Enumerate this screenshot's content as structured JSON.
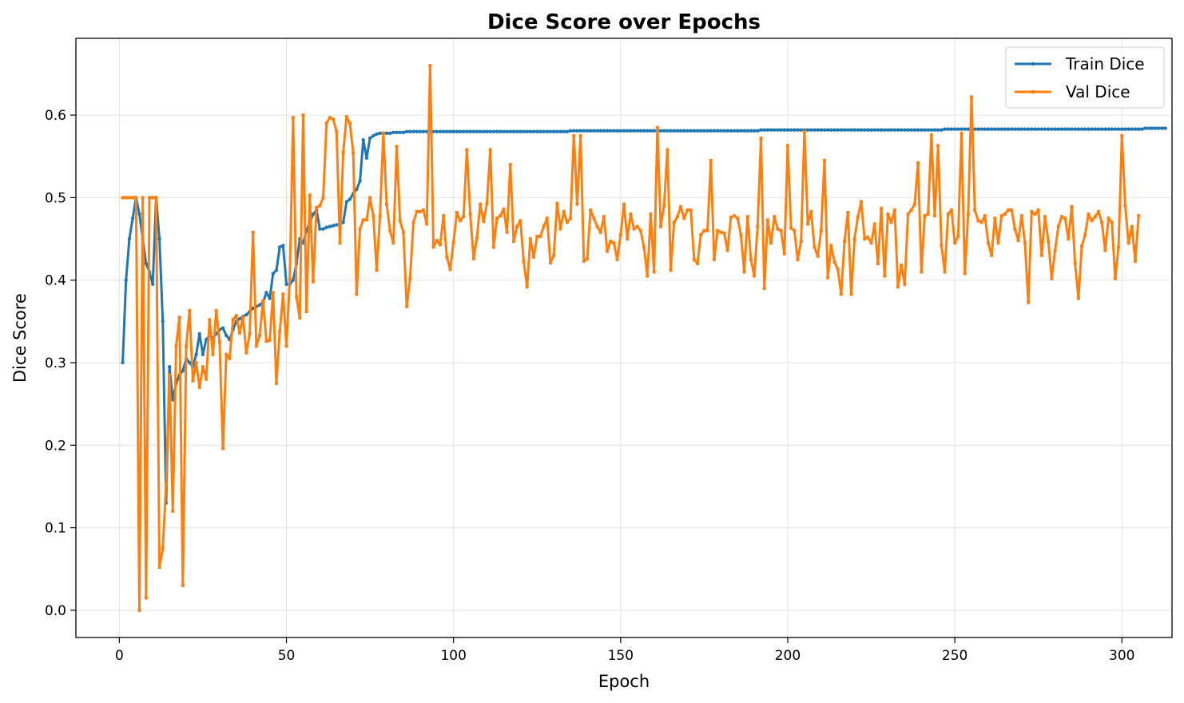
{
  "chart_data": {
    "type": "line",
    "title": "Dice Score over Epochs",
    "xlabel": "Epoch",
    "ylabel": "Dice Score",
    "xlim": [
      -13,
      315
    ],
    "ylim": [
      -0.033,
      0.693
    ],
    "xticks": [
      0,
      50,
      100,
      150,
      200,
      250,
      300
    ],
    "yticks": [
      0.0,
      0.1,
      0.2,
      0.3,
      0.4,
      0.5,
      0.6
    ],
    "grid": true,
    "legend_position": "top-right",
    "colors": {
      "train": "#1f77b4",
      "val": "#ff7f0e"
    },
    "series": [
      {
        "name": "Train Dice",
        "color": "#1f77b4",
        "marker": "circle",
        "x_start": 1,
        "values": [
          0.3,
          0.4,
          0.45,
          0.475,
          0.5,
          0.48,
          0.45,
          0.42,
          0.41,
          0.395,
          0.5,
          0.45,
          0.35,
          0.13,
          0.295,
          0.255,
          0.275,
          0.285,
          0.29,
          0.305,
          0.3,
          0.295,
          0.31,
          0.335,
          0.31,
          0.328,
          0.333,
          0.33,
          0.335,
          0.34,
          0.342,
          0.333,
          0.328,
          0.34,
          0.35,
          0.353,
          0.356,
          0.358,
          0.362,
          0.366,
          0.368,
          0.37,
          0.373,
          0.385,
          0.378,
          0.408,
          0.412,
          0.44,
          0.442,
          0.395,
          0.395,
          0.4,
          0.42,
          0.45,
          0.445,
          0.46,
          0.47,
          0.48,
          0.485,
          0.462,
          0.462,
          0.464,
          0.465,
          0.466,
          0.467,
          0.468,
          0.47,
          0.495,
          0.498,
          0.505,
          0.51,
          0.52,
          0.57,
          0.548,
          0.572,
          0.575,
          0.577,
          0.578,
          0.578,
          0.578,
          0.578,
          0.579,
          0.579,
          0.579,
          0.579,
          0.58,
          0.58,
          0.58,
          0.58,
          0.58,
          0.58,
          0.58,
          0.58,
          0.58,
          0.58,
          0.58,
          0.58,
          0.58,
          0.58,
          0.58,
          0.58,
          0.58,
          0.58,
          0.58,
          0.58,
          0.58,
          0.58,
          0.58,
          0.58,
          0.58,
          0.58,
          0.58,
          0.58,
          0.58,
          0.58,
          0.58,
          0.58,
          0.58,
          0.58,
          0.58,
          0.58,
          0.58,
          0.58,
          0.58,
          0.58,
          0.58,
          0.58,
          0.58,
          0.58,
          0.58,
          0.58,
          0.58,
          0.58,
          0.58,
          0.581,
          0.581,
          0.581,
          0.581,
          0.581,
          0.581,
          0.581,
          0.581,
          0.581,
          0.581,
          0.581,
          0.581,
          0.581,
          0.581,
          0.581,
          0.581,
          0.581,
          0.581,
          0.581,
          0.581,
          0.581,
          0.581,
          0.581,
          0.581,
          0.581,
          0.581,
          0.581,
          0.581,
          0.581,
          0.581,
          0.581,
          0.581,
          0.581,
          0.581,
          0.581,
          0.581,
          0.581,
          0.581,
          0.581,
          0.581,
          0.581,
          0.581,
          0.581,
          0.581,
          0.581,
          0.581,
          0.581,
          0.581,
          0.581,
          0.581,
          0.581,
          0.581,
          0.581,
          0.581,
          0.581,
          0.581,
          0.581,
          0.582,
          0.582,
          0.582,
          0.582,
          0.582,
          0.582,
          0.582,
          0.582,
          0.582,
          0.582,
          0.582,
          0.582,
          0.582,
          0.582,
          0.582,
          0.582,
          0.582,
          0.582,
          0.582,
          0.582,
          0.582,
          0.582,
          0.582,
          0.582,
          0.582,
          0.582,
          0.582,
          0.582,
          0.582,
          0.582,
          0.582,
          0.582,
          0.582,
          0.582,
          0.582,
          0.582,
          0.582,
          0.582,
          0.582,
          0.582,
          0.582,
          0.582,
          0.582,
          0.582,
          0.582,
          0.582,
          0.582,
          0.582,
          0.582,
          0.582,
          0.582,
          0.582,
          0.582,
          0.582,
          0.582,
          0.583,
          0.583,
          0.583,
          0.583,
          0.583,
          0.583,
          0.583,
          0.583,
          0.583,
          0.583,
          0.583,
          0.583,
          0.583,
          0.583,
          0.583,
          0.583,
          0.583,
          0.583,
          0.583,
          0.583,
          0.583,
          0.583,
          0.583,
          0.583,
          0.583,
          0.583,
          0.583,
          0.583,
          0.583,
          0.583,
          0.583,
          0.583,
          0.583,
          0.583,
          0.583,
          0.583,
          0.583,
          0.583,
          0.583,
          0.583,
          0.583,
          0.583,
          0.583,
          0.583,
          0.583,
          0.583,
          0.583,
          0.583,
          0.583,
          0.583,
          0.583,
          0.583,
          0.583,
          0.583,
          0.583,
          0.583,
          0.583,
          0.583,
          0.583,
          0.583,
          0.584,
          0.584,
          0.584,
          0.584,
          0.584,
          0.584,
          0.584
        ]
      },
      {
        "name": "Val Dice",
        "color": "#ff7f0e",
        "marker": "square",
        "x_start": 1,
        "values": [
          0.5,
          0.5,
          0.5,
          0.5,
          0.5,
          0.0,
          0.5,
          0.015,
          0.5,
          0.5,
          0.5,
          0.052,
          0.075,
          0.153,
          0.285,
          0.12,
          0.32,
          0.355,
          0.03,
          0.32,
          0.363,
          0.278,
          0.3,
          0.27,
          0.295,
          0.28,
          0.352,
          0.31,
          0.363,
          0.325,
          0.196,
          0.31,
          0.305,
          0.352,
          0.357,
          0.336,
          0.355,
          0.312,
          0.335,
          0.458,
          0.32,
          0.333,
          0.375,
          0.326,
          0.327,
          0.385,
          0.275,
          0.338,
          0.383,
          0.32,
          0.402,
          0.597,
          0.38,
          0.354,
          0.6,
          0.362,
          0.503,
          0.398,
          0.488,
          0.49,
          0.5,
          0.59,
          0.597,
          0.595,
          0.58,
          0.445,
          0.555,
          0.598,
          0.59,
          0.554,
          0.383,
          0.462,
          0.473,
          0.473,
          0.5,
          0.478,
          0.412,
          0.478,
          0.578,
          0.492,
          0.46,
          0.445,
          0.562,
          0.472,
          0.458,
          0.368,
          0.402,
          0.47,
          0.483,
          0.483,
          0.485,
          0.468,
          0.66,
          0.44,
          0.448,
          0.443,
          0.478,
          0.428,
          0.413,
          0.446,
          0.482,
          0.472,
          0.477,
          0.558,
          0.48,
          0.426,
          0.451,
          0.492,
          0.471,
          0.493,
          0.558,
          0.44,
          0.475,
          0.478,
          0.486,
          0.458,
          0.54,
          0.447,
          0.465,
          0.472,
          0.423,
          0.392,
          0.45,
          0.428,
          0.453,
          0.453,
          0.465,
          0.475,
          0.421,
          0.43,
          0.493,
          0.462,
          0.483,
          0.47,
          0.475,
          0.575,
          0.492,
          0.575,
          0.423,
          0.426,
          0.485,
          0.475,
          0.465,
          0.458,
          0.477,
          0.435,
          0.447,
          0.445,
          0.425,
          0.455,
          0.492,
          0.45,
          0.48,
          0.462,
          0.465,
          0.46,
          0.44,
          0.405,
          0.48,
          0.41,
          0.585,
          0.465,
          0.49,
          0.558,
          0.412,
          0.47,
          0.477,
          0.489,
          0.475,
          0.485,
          0.485,
          0.425,
          0.42,
          0.455,
          0.46,
          0.46,
          0.545,
          0.425,
          0.46,
          0.458,
          0.457,
          0.436,
          0.476,
          0.478,
          0.475,
          0.455,
          0.41,
          0.477,
          0.425,
          0.405,
          0.465,
          0.572,
          0.39,
          0.473,
          0.445,
          0.477,
          0.462,
          0.46,
          0.432,
          0.563,
          0.463,
          0.46,
          0.425,
          0.447,
          0.58,
          0.468,
          0.483,
          0.44,
          0.429,
          0.46,
          0.545,
          0.403,
          0.442,
          0.422,
          0.413,
          0.383,
          0.447,
          0.482,
          0.383,
          0.45,
          0.477,
          0.495,
          0.45,
          0.452,
          0.445,
          0.468,
          0.42,
          0.487,
          0.405,
          0.48,
          0.47,
          0.485,
          0.392,
          0.418,
          0.395,
          0.48,
          0.485,
          0.492,
          0.542,
          0.41,
          0.478,
          0.48,
          0.576,
          0.478,
          0.563,
          0.442,
          0.41,
          0.48,
          0.485,
          0.445,
          0.453,
          0.578,
          0.408,
          0.48,
          0.622,
          0.485,
          0.472,
          0.47,
          0.478,
          0.445,
          0.43,
          0.475,
          0.445,
          0.478,
          0.48,
          0.485,
          0.485,
          0.462,
          0.448,
          0.478,
          0.445,
          0.373,
          0.483,
          0.48,
          0.485,
          0.43,
          0.477,
          0.447,
          0.402,
          0.436,
          0.465,
          0.477,
          0.475,
          0.45,
          0.489,
          0.42,
          0.378,
          0.441,
          0.455,
          0.48,
          0.472,
          0.477,
          0.483,
          0.47,
          0.436,
          0.475,
          0.47,
          0.402,
          0.44,
          0.575,
          0.49,
          0.445,
          0.465,
          0.423,
          0.478
        ]
      }
    ]
  }
}
